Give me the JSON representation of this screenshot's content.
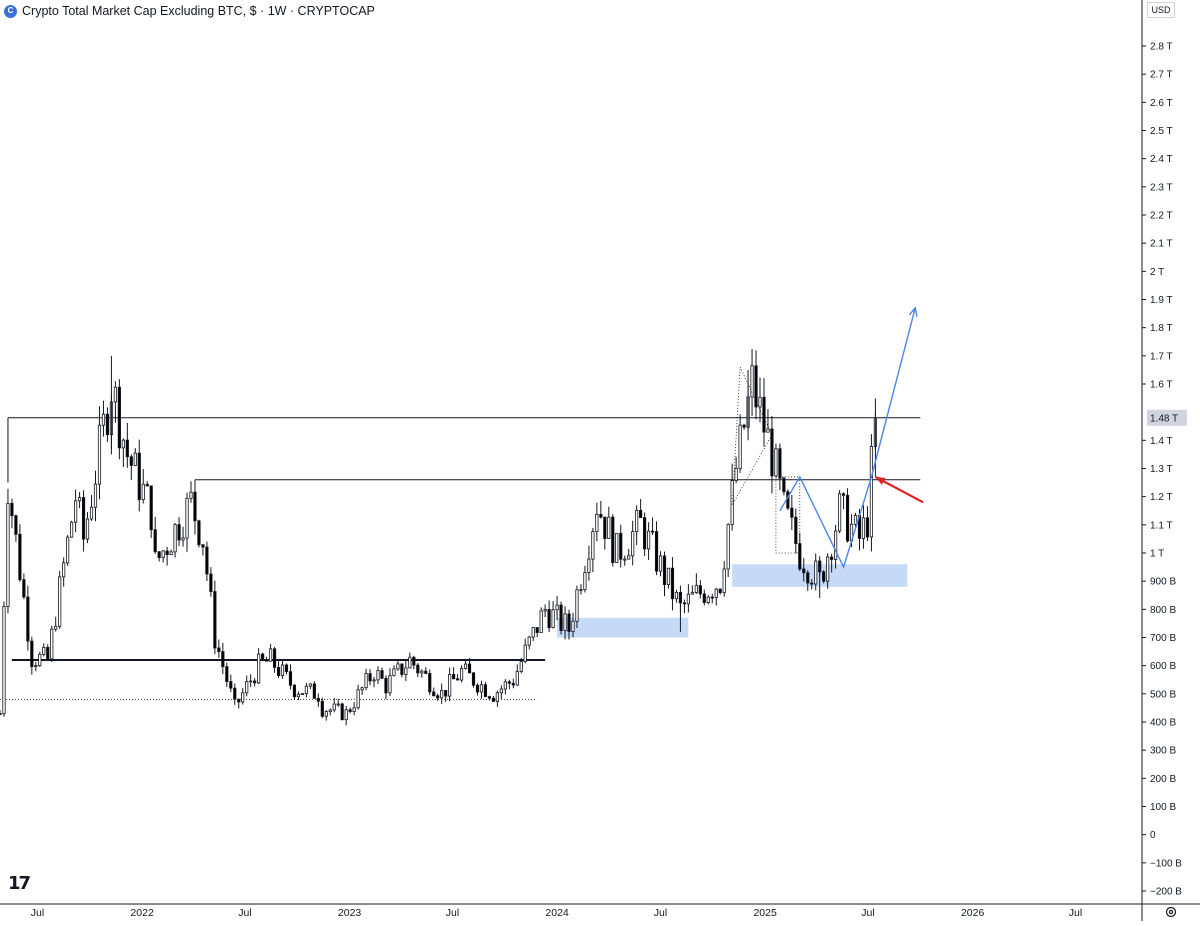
{
  "header": {
    "title": "Crypto Total Market Cap Excluding BTC, $ · 1W · CRYPTOCAP",
    "currency": "USD"
  },
  "current_price_label": "1.48 T",
  "icons": {
    "logo": "cryptocap-logo",
    "brand": "tradingview-logo",
    "settings": "gear-icon"
  },
  "colors": {
    "up": "#ffffff",
    "down": "#000000",
    "zone": "#bcd3f7",
    "projection": "#4a86e8",
    "arrow": "#e02020"
  },
  "chart_data": {
    "type": "candlestick",
    "y_unit": "USD (T = trillion, B = billion)",
    "ylim": [
      -0.2,
      2.8
    ],
    "x_range": [
      "2021-04-26",
      "2026-10-26"
    ],
    "y_ticks": [
      {
        "v": 2.8,
        "label": "2.8 T"
      },
      {
        "v": 2.7,
        "label": "2.7 T"
      },
      {
        "v": 2.6,
        "label": "2.6 T"
      },
      {
        "v": 2.5,
        "label": "2.5 T"
      },
      {
        "v": 2.4,
        "label": "2.4 T"
      },
      {
        "v": 2.3,
        "label": "2.3 T"
      },
      {
        "v": 2.2,
        "label": "2.2 T"
      },
      {
        "v": 2.1,
        "label": "2.1 T"
      },
      {
        "v": 2.0,
        "label": "2 T"
      },
      {
        "v": 1.9,
        "label": "1.9 T"
      },
      {
        "v": 1.8,
        "label": "1.8 T"
      },
      {
        "v": 1.7,
        "label": "1.7 T"
      },
      {
        "v": 1.6,
        "label": "1.6 T"
      },
      {
        "v": 1.4,
        "label": "1.4 T"
      },
      {
        "v": 1.3,
        "label": "1.3 T"
      },
      {
        "v": 1.2,
        "label": "1.2 T"
      },
      {
        "v": 1.1,
        "label": "1.1 T"
      },
      {
        "v": 1.0,
        "label": "1 T"
      },
      {
        "v": 0.9,
        "label": "900 B"
      },
      {
        "v": 0.8,
        "label": "800 B"
      },
      {
        "v": 0.7,
        "label": "700 B"
      },
      {
        "v": 0.6,
        "label": "600 B"
      },
      {
        "v": 0.5,
        "label": "500 B"
      },
      {
        "v": 0.4,
        "label": "400 B"
      },
      {
        "v": 0.3,
        "label": "300 B"
      },
      {
        "v": 0.2,
        "label": "200 B"
      },
      {
        "v": 0.1,
        "label": "100 B"
      },
      {
        "v": 0.0,
        "label": "0"
      },
      {
        "v": -0.1,
        "label": "−100 B"
      },
      {
        "v": -0.2,
        "label": "−200 B"
      }
    ],
    "x_ticks": [
      {
        "date": "2021-07-01",
        "label": "Jul"
      },
      {
        "date": "2022-01-01",
        "label": "2022"
      },
      {
        "date": "2022-07-01",
        "label": "Jul"
      },
      {
        "date": "2023-01-01",
        "label": "2023"
      },
      {
        "date": "2023-07-01",
        "label": "Jul"
      },
      {
        "date": "2024-01-01",
        "label": "2024"
      },
      {
        "date": "2024-07-01",
        "label": "Jul"
      },
      {
        "date": "2025-01-01",
        "label": "2025"
      },
      {
        "date": "2025-07-01",
        "label": "Jul"
      },
      {
        "date": "2026-01-01",
        "label": "2026"
      },
      {
        "date": "2026-07-01",
        "label": "Jul"
      }
    ],
    "series_anchors": {
      "description": "approximate weekly close path (date, value in T)",
      "points": [
        [
          "2021-04-26",
          0.43
        ],
        [
          "2021-05-10",
          1.25
        ],
        [
          "2021-06-21",
          0.63
        ],
        [
          "2021-07-19",
          0.62
        ],
        [
          "2021-09-06",
          1.2
        ],
        [
          "2021-09-20",
          1.05
        ],
        [
          "2021-11-08",
          1.6
        ],
        [
          "2021-12-06",
          1.35
        ],
        [
          "2022-01-17",
          1.15
        ],
        [
          "2022-01-24",
          0.96
        ],
        [
          "2022-03-28",
          1.18
        ],
        [
          "2022-04-18",
          1.05
        ],
        [
          "2022-05-09",
          0.7
        ],
        [
          "2022-06-13",
          0.45
        ],
        [
          "2022-07-25",
          0.6
        ],
        [
          "2022-08-15",
          0.62
        ],
        [
          "2022-09-26",
          0.52
        ],
        [
          "2022-11-07",
          0.5
        ],
        [
          "2022-11-14",
          0.45
        ],
        [
          "2022-12-26",
          0.43
        ],
        [
          "2023-02-13",
          0.58
        ],
        [
          "2023-03-06",
          0.53
        ],
        [
          "2023-04-17",
          0.62
        ],
        [
          "2023-06-12",
          0.5
        ],
        [
          "2023-07-17",
          0.58
        ],
        [
          "2023-09-11",
          0.5
        ],
        [
          "2023-10-16",
          0.55
        ],
        [
          "2023-11-13",
          0.68
        ],
        [
          "2023-12-11",
          0.8
        ],
        [
          "2024-01-22",
          0.73
        ],
        [
          "2024-03-11",
          1.18
        ],
        [
          "2024-04-15",
          1.0
        ],
        [
          "2024-05-27",
          1.1
        ],
        [
          "2024-07-01",
          0.95
        ],
        [
          "2024-08-05",
          0.8
        ],
        [
          "2024-09-02",
          0.85
        ],
        [
          "2024-10-14",
          0.9
        ],
        [
          "2024-11-11",
          1.3
        ],
        [
          "2024-12-09",
          1.6
        ],
        [
          "2025-01-13",
          1.35
        ],
        [
          "2025-02-03",
          1.15
        ],
        [
          "2025-03-03",
          1.0
        ],
        [
          "2025-04-07",
          0.9
        ],
        [
          "2025-05-12",
          1.15
        ],
        [
          "2025-06-16",
          1.05
        ],
        [
          "2025-06-30",
          1.12
        ],
        [
          "2025-07-14",
          1.48
        ]
      ]
    },
    "highlights": {
      "low_2021": 0.43,
      "high_2021_nov": 1.7,
      "peak_2024_dec": 1.65,
      "jul_2025_wick": 1.5,
      "last_close": 1.48
    },
    "annotations": {
      "resistance_top": {
        "value": 1.48,
        "from": "2021-05-10",
        "to": "2025-10-01"
      },
      "resistance_mid": {
        "value": 1.26,
        "from": "2022-04-04",
        "to": "2025-10-01"
      },
      "support_bold": {
        "value": 0.62,
        "from": "2021-05-17",
        "to": "2023-12-11"
      },
      "support_dotted": {
        "value": 0.48,
        "from": "2021-04-26",
        "to": "2023-11-27"
      },
      "demand_zone_2024": {
        "from": "2024-01-01",
        "to": "2024-08-19",
        "low": 0.7,
        "high": 0.77
      },
      "demand_zone_2025": {
        "from": "2024-11-04",
        "to": "2025-09-08",
        "low": 0.88,
        "high": 0.96
      },
      "projection_path": [
        [
          "2025-01-27",
          1.15
        ],
        [
          "2025-03-03",
          1.27
        ],
        [
          "2025-05-19",
          0.95
        ],
        [
          "2025-07-07",
          1.27
        ],
        [
          "2025-09-22",
          1.87
        ]
      ],
      "dotted_triangle": [
        [
          "2024-11-18",
          1.66
        ],
        [
          "2025-01-13",
          1.42
        ],
        [
          "2024-11-04",
          1.17
        ]
      ],
      "red_arrow": {
        "from": [
          "2025-10-06",
          1.18
        ],
        "to": [
          "2025-07-14",
          1.27
        ]
      }
    }
  }
}
